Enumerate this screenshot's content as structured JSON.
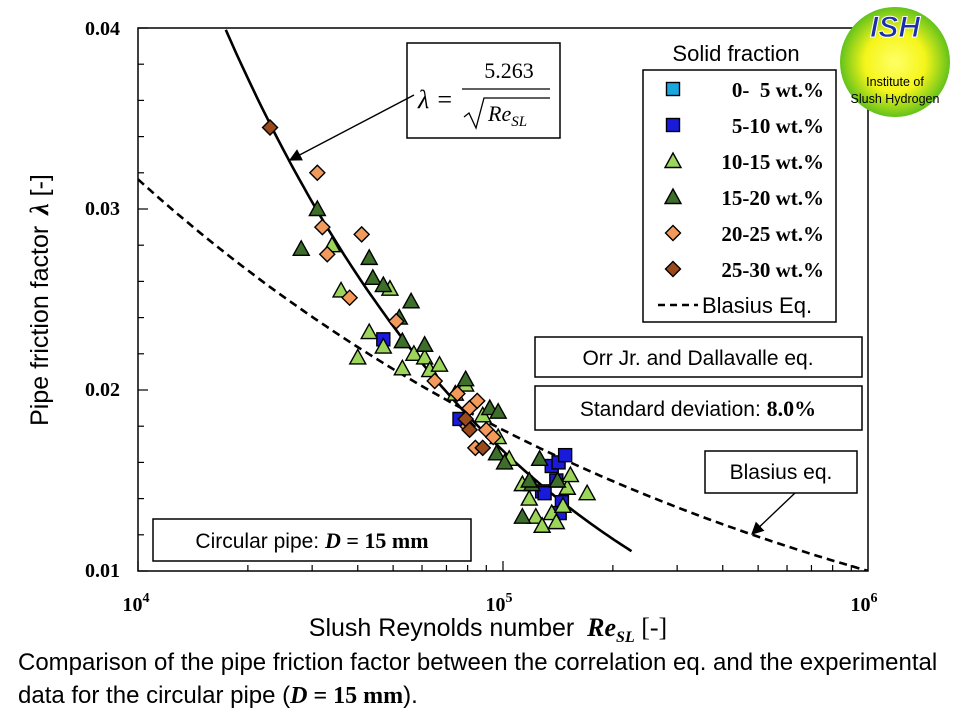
{
  "chart_data": {
    "type": "scatter",
    "x_scale": "log",
    "xlim": [
      10000,
      1000000
    ],
    "ylim": [
      0.01,
      0.04
    ],
    "x_ticks": [
      {
        "value": 10000,
        "base": "10",
        "exp": "4"
      },
      {
        "value": 100000,
        "base": "10",
        "exp": "5"
      },
      {
        "value": 1000000,
        "base": "10",
        "exp": "6"
      }
    ],
    "y_ticks": [
      "0.01",
      "0.02",
      "0.03",
      "0.04"
    ],
    "xlabel": {
      "text": "Slush Reynolds number ",
      "symbol": "Re",
      "sub": "SL",
      "unit": " [-]"
    },
    "ylabel": {
      "text": "Pipe friction factor ",
      "symbol": "λ",
      "unit": " [-]"
    },
    "legend": {
      "title": "Solid fraction",
      "position": "top-right",
      "entries": [
        {
          "label": "0-  5 wt.%",
          "marker": "square",
          "color": "#1aa7e0"
        },
        {
          "label": "5-10 wt.%",
          "marker": "square",
          "color": "#1a1adb"
        },
        {
          "label": "10-15 wt.%",
          "marker": "triangle",
          "color": "#9bd65a"
        },
        {
          "label": "15-20 wt.%",
          "marker": "triangle",
          "color": "#3d6e2a"
        },
        {
          "label": "20-25 wt.%",
          "marker": "diamond",
          "color": "#f39a5b"
        },
        {
          "label": "25-30 wt.%",
          "marker": "diamond",
          "color": "#9a4a1c"
        },
        {
          "label": "Blasius Eq.",
          "marker": "dashed-line",
          "color": "#000000"
        }
      ]
    },
    "series": [
      {
        "name": "0-  5 wt.%",
        "marker": "square",
        "color": "#1aa7e0",
        "points": []
      },
      {
        "name": "5-10 wt.%",
        "marker": "square",
        "color": "#1a1adb",
        "points": [
          [
            76000,
            0.0184
          ],
          [
            47000,
            0.0228
          ],
          [
            128000,
            0.0144
          ],
          [
            136000,
            0.0158
          ],
          [
            142000,
            0.016
          ],
          [
            148000,
            0.0164
          ],
          [
            140000,
            0.015
          ],
          [
            145000,
            0.0138
          ],
          [
            143000,
            0.0132
          ],
          [
            130000,
            0.0143
          ]
        ]
      },
      {
        "name": "10-15 wt.%",
        "marker": "triangle",
        "color": "#9bd65a",
        "points": [
          [
            34000,
            0.028
          ],
          [
            36000,
            0.0255
          ],
          [
            40000,
            0.0218
          ],
          [
            43000,
            0.0232
          ],
          [
            47000,
            0.0224
          ],
          [
            49000,
            0.0256
          ],
          [
            53000,
            0.0212
          ],
          [
            57000,
            0.022
          ],
          [
            61000,
            0.0218
          ],
          [
            63000,
            0.0211
          ],
          [
            67000,
            0.0214
          ],
          [
            74000,
            0.0198
          ],
          [
            79000,
            0.0203
          ],
          [
            88000,
            0.0186
          ],
          [
            97000,
            0.0174
          ],
          [
            104000,
            0.0162
          ],
          [
            113000,
            0.0148
          ],
          [
            118000,
            0.014
          ],
          [
            123000,
            0.013
          ],
          [
            128000,
            0.0125
          ],
          [
            136000,
            0.0132
          ],
          [
            140000,
            0.0127
          ],
          [
            146000,
            0.0136
          ],
          [
            150000,
            0.0146
          ],
          [
            153000,
            0.0153
          ],
          [
            170000,
            0.0143
          ]
        ]
      },
      {
        "name": "15-20 wt.%",
        "marker": "triangle",
        "color": "#3d6e2a",
        "points": [
          [
            31000,
            0.03
          ],
          [
            28000,
            0.0278
          ],
          [
            43000,
            0.0273
          ],
          [
            44000,
            0.0262
          ],
          [
            47000,
            0.0258
          ],
          [
            52000,
            0.024
          ],
          [
            56000,
            0.0249
          ],
          [
            53000,
            0.0227
          ],
          [
            61000,
            0.0225
          ],
          [
            79000,
            0.0206
          ],
          [
            92000,
            0.019
          ],
          [
            97000,
            0.0188
          ],
          [
            96000,
            0.0165
          ],
          [
            101000,
            0.016
          ],
          [
            113000,
            0.013
          ],
          [
            120000,
            0.0148
          ],
          [
            126000,
            0.0162
          ],
          [
            118000,
            0.015
          ],
          [
            141000,
            0.015
          ]
        ]
      },
      {
        "name": "20-25 wt.%",
        "marker": "diamond",
        "color": "#f39a5b",
        "points": [
          [
            31000,
            0.032
          ],
          [
            32000,
            0.029
          ],
          [
            33000,
            0.0275
          ],
          [
            38000,
            0.0251
          ],
          [
            41000,
            0.0286
          ],
          [
            51000,
            0.0238
          ],
          [
            65000,
            0.0205
          ],
          [
            75000,
            0.0198
          ],
          [
            80000,
            0.018
          ],
          [
            81000,
            0.019
          ],
          [
            84000,
            0.0168
          ],
          [
            85000,
            0.0194
          ],
          [
            90000,
            0.0178
          ],
          [
            94000,
            0.0174
          ]
        ]
      },
      {
        "name": "25-30 wt.%",
        "marker": "diamond",
        "color": "#9a4a1c",
        "points": [
          [
            23000,
            0.0345
          ],
          [
            88000,
            0.0168
          ],
          [
            79000,
            0.0184
          ],
          [
            81000,
            0.0178
          ]
        ]
      }
    ],
    "lines": [
      {
        "name": "Blasius Eq.",
        "style": "dashed",
        "formula": "0.3164*Re^-0.25",
        "x_range": [
          10000,
          1000000
        ]
      },
      {
        "name": "correlation",
        "style": "solid",
        "formula": "5.263/sqrt(Re)",
        "x_range": [
          17400,
          225000
        ]
      }
    ],
    "annotations": {
      "formula": {
        "lhs": "λ =",
        "numerator": "5.263",
        "sqrt_symbol": "Re",
        "sqrt_sub": "SL"
      },
      "orr": "Orr Jr. and Dallavalle eq.",
      "std_label": "Standard deviation: ",
      "std_value": "8.0%",
      "blasius": "Blasius eq.",
      "pipe_label": "Circular pipe: ",
      "pipe_symbol": "D",
      "pipe_value": " = 15 mm"
    }
  },
  "logo": {
    "title": "ISH",
    "line1": "Institute of",
    "line2": "Slush Hydrogen"
  },
  "caption": {
    "text_before": "Comparison of the pipe friction factor between the correlation eq. and the experimental data for the circular pipe (",
    "symbol": "D",
    "value": " = 15 mm",
    "text_after": ")."
  }
}
